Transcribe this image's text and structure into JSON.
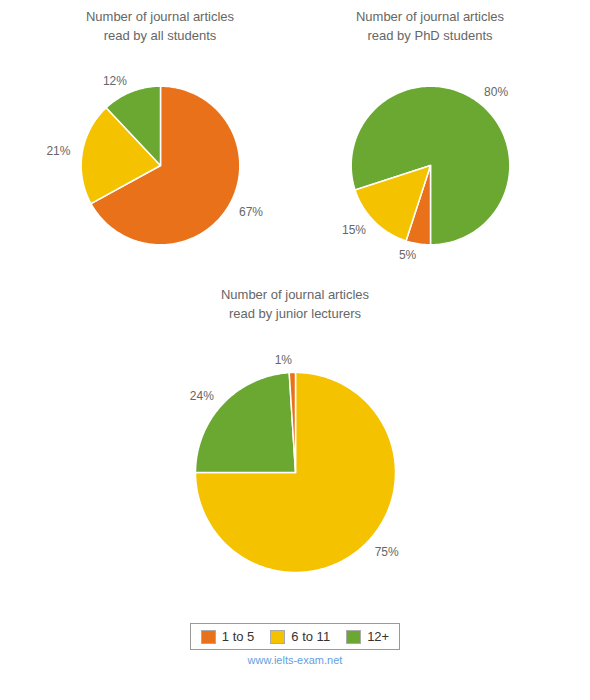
{
  "chart_data": [
    {
      "type": "pie",
      "title": "Number of journal articles\nread by all students",
      "categories": [
        "1 to 5",
        "6 to 11",
        "12+"
      ],
      "values": [
        67,
        21,
        12
      ],
      "value_labels": [
        "67%",
        "21%",
        "12%"
      ],
      "colors": [
        "#E8711A",
        "#F5C200",
        "#6AA832"
      ],
      "data_labels": true
    },
    {
      "type": "pie",
      "title": "Number of journal articles\nread by PhD students",
      "categories": [
        "12+",
        "1 to 5",
        "6 to 11"
      ],
      "values": [
        80,
        5,
        15
      ],
      "value_labels": [
        "80%",
        "5%",
        "15%"
      ],
      "colors": [
        "#6AA832",
        "#E8711A",
        "#F5C200"
      ],
      "data_labels": true
    },
    {
      "type": "pie",
      "title": "Number of journal articles\nread by junior lecturers",
      "categories": [
        "6 to 11",
        "12+",
        "1 to 5"
      ],
      "values": [
        75,
        24,
        1
      ],
      "value_labels": [
        "75%",
        "24%",
        "1%"
      ],
      "colors": [
        "#F5C200",
        "#6AA832",
        "#E8711A"
      ],
      "data_labels": true,
      "legend": "bottom",
      "annotations": [
        "www.ielts-exam.net"
      ]
    }
  ]
}
